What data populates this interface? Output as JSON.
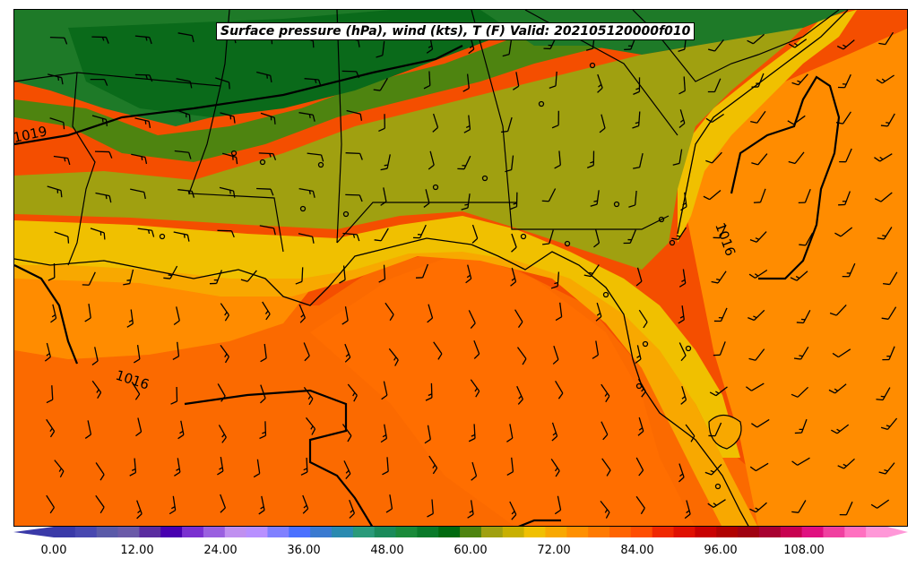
{
  "title": "Surface pressure (hPa), wind (kts), T (F) Valid: 202105120000f010",
  "isobar_labels": [
    {
      "text": "1019",
      "id": "isobar-1019"
    },
    {
      "text": "1016",
      "id": "isobar-1016-gulf"
    },
    {
      "text": "1016",
      "id": "isobar-1016-atlantic"
    }
  ],
  "colorbar": {
    "ticks": [
      "0.00",
      "12.00",
      "24.00",
      "36.00",
      "48.00",
      "60.00",
      "72.00",
      "84.00",
      "96.00",
      "108.00"
    ],
    "colors": [
      "#3a3aa8",
      "#4848b0",
      "#5a5aa8",
      "#6a5aa8",
      "#5a2ca0",
      "#4800b0",
      "#7a30d0",
      "#9a60e0",
      "#c090f0",
      "#b890ff",
      "#8080ff",
      "#4a70ff",
      "#3a7ad0",
      "#2a8ab0",
      "#2a9a7a",
      "#1a8a5a",
      "#1a8a3a",
      "#0a7a2a",
      "#006a10",
      "#4e8410",
      "#a0a010",
      "#c8b000",
      "#f0c000",
      "#f8a800",
      "#ff9000",
      "#ff7a00",
      "#ff6400",
      "#ff4e00",
      "#f02800",
      "#e01000",
      "#c80000",
      "#b00000",
      "#a00010",
      "#a80030",
      "#c80050",
      "#e01080",
      "#f040a0",
      "#ff70c0",
      "#ff98d8"
    ]
  },
  "colors": {
    "dark_green": "#0a6a1a",
    "green": "#1e7a28",
    "olive_green": "#4e8410",
    "olive": "#a0a010",
    "yellow": "#f0c000",
    "light_orange": "#f8a800",
    "orange": "#ff8c00",
    "orange_red": "#fb6a00",
    "red_orange": "#f44e00"
  }
}
